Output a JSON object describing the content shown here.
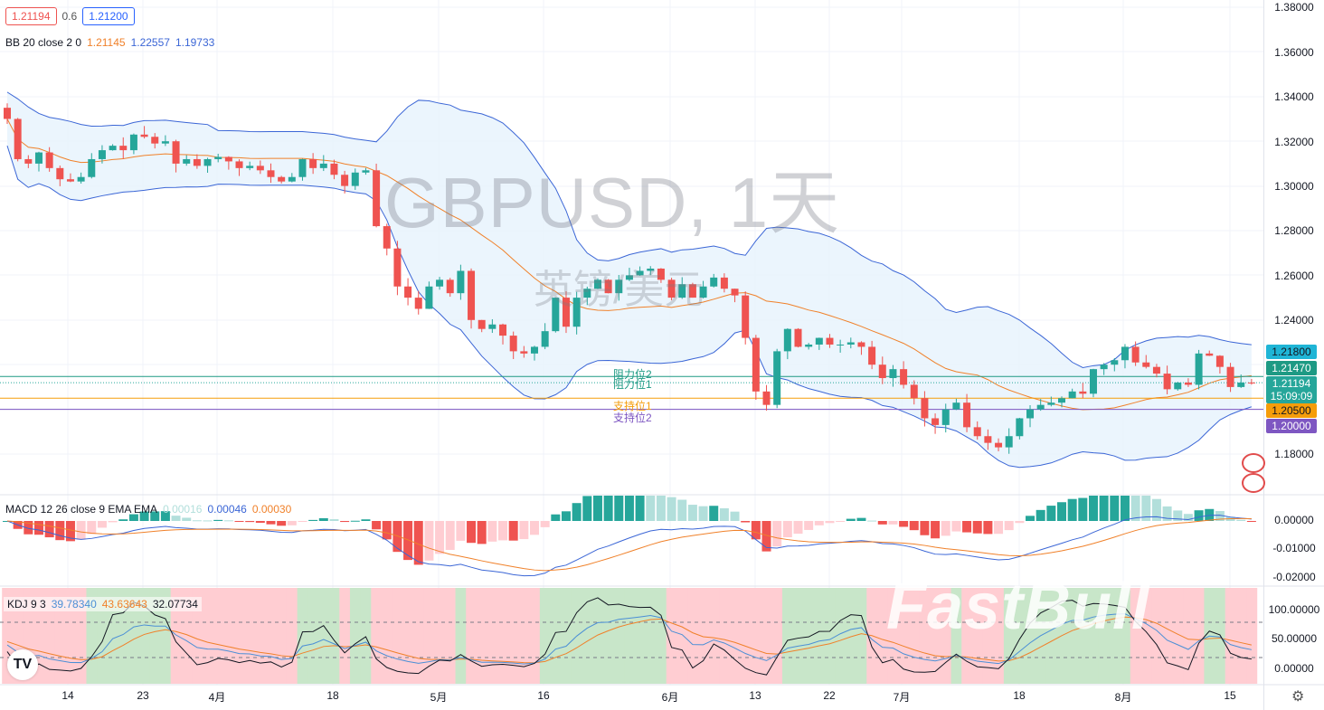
{
  "symbol_watermark": "GBPUSD, 1天",
  "symbol_subtitle": "英镑/美元",
  "brand_watermark": "FastBull",
  "header": {
    "bid": "1.21194",
    "spread": "0.6",
    "ask": "1.21200"
  },
  "bb_legend": {
    "label": "BB 20 close 2 0",
    "basis": "1.21145",
    "upper": "1.22557",
    "lower": "1.19733"
  },
  "macd_legend": {
    "label": "MACD 12 26 close 9 EMA EMA",
    "hist": "0.00016",
    "macd": "0.00046",
    "signal": "0.00030"
  },
  "kdj_legend": {
    "label": "KDJ 9 3",
    "k": "39.78340",
    "d": "43.63643",
    "j": "32.07734"
  },
  "price_axis": [
    "1.38000",
    "1.36000",
    "1.34000",
    "1.32000",
    "1.30000",
    "1.28000",
    "1.26000",
    "1.24000",
    "1.18000"
  ],
  "macd_axis": [
    "0.00000",
    "-0.01000",
    "-0.02000"
  ],
  "kdj_axis": [
    "100.00000",
    "50.00000",
    "0.00000"
  ],
  "price_tags": {
    "bb_upper": "1.21800",
    "resistance": "1.21470",
    "last": "1.21194",
    "countdown": "15:09:09",
    "support1": "1.20500",
    "support2": "1.20000"
  },
  "levels": {
    "resistance2": "阻力位2",
    "resistance1": "阻力位1",
    "support1": "支持位1",
    "support2": "支持位2"
  },
  "time_axis": [
    "14",
    "23",
    "4月",
    "18",
    "5月",
    "16",
    "6月",
    "13",
    "22",
    "7月",
    "18",
    "8月",
    "15"
  ],
  "colors": {
    "up": "#26a69a",
    "down": "#ef5350",
    "bb": "#3b66d6",
    "basis": "#f0812a",
    "bb_fill": "#e6f2fc",
    "resistance": "#1e9a84",
    "support1": "#f59d0a",
    "support2": "#7e57c2",
    "bb_tag": "#1fb5d6",
    "k": "#4b8fd6",
    "d": "#f0812a",
    "j": "#131722"
  },
  "chart_data": {
    "type": "candlestick",
    "price_levels": {
      "resistance2": 1.2147,
      "resistance1": 1.2147,
      "support1": 1.205,
      "support2": 1.2,
      "last": 1.21194
    },
    "ylim": [
      1.16,
      1.385
    ],
    "first_open": 1.335,
    "closes": [
      1.33,
      1.312,
      1.31,
      1.315,
      1.308,
      1.303,
      1.302,
      1.304,
      1.312,
      1.316,
      1.318,
      1.316,
      1.323,
      1.322,
      1.319,
      1.32,
      1.31,
      1.312,
      1.309,
      1.312,
      1.313,
      1.311,
      1.308,
      1.309,
      1.307,
      1.304,
      1.302,
      1.304,
      1.312,
      1.308,
      1.31,
      1.305,
      1.3,
      1.306,
      1.307,
      1.282,
      1.272,
      1.255,
      1.25,
      1.245,
      1.255,
      1.258,
      1.252,
      1.262,
      1.24,
      1.236,
      1.238,
      1.233,
      1.226,
      1.225,
      1.228,
      1.235,
      1.25,
      1.237,
      1.25,
      1.254,
      1.258,
      1.252,
      1.258,
      1.26,
      1.262,
      1.263,
      1.258,
      1.25,
      1.256,
      1.25,
      1.255,
      1.259,
      1.254,
      1.251,
      1.232,
      1.208,
      1.202,
      1.226,
      1.236,
      1.228,
      1.229,
      1.232,
      1.229,
      1.229,
      1.23,
      1.228,
      1.22,
      1.214,
      1.218,
      1.211,
      1.205,
      1.196,
      1.193,
      1.2,
      1.203,
      1.192,
      1.188,
      1.185,
      1.183,
      1.188,
      1.196,
      1.2,
      1.202,
      1.203,
      1.205,
      1.208,
      1.207,
      1.218,
      1.22,
      1.222,
      1.228,
      1.221,
      1.219,
      1.216,
      1.209,
      1.212,
      1.211,
      1.225,
      1.224,
      1.219,
      1.21,
      1.212,
      1.21194
    ]
  }
}
